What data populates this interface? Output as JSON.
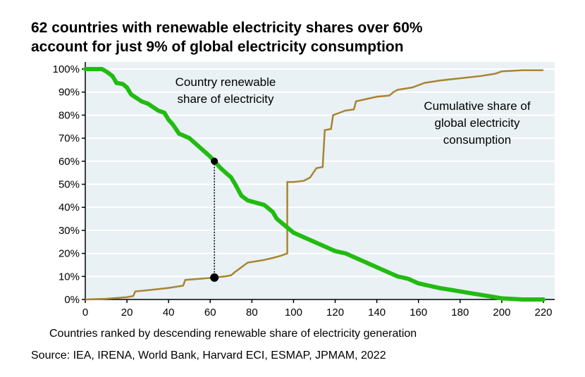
{
  "chart_data": {
    "type": "line",
    "title_line1": "62 countries with renewable electricity shares over 60%",
    "title_line2": "account for just 9% of global electricity consumption",
    "xlabel": "Countries ranked by descending renewable share of electricity generation",
    "source": "Source: IEA, IRENA, World Bank, Harvard ECI, ESMAP, JPMAM, 2022",
    "xlim": [
      0,
      220
    ],
    "ylim": [
      0,
      100
    ],
    "x_ticks": [
      0,
      20,
      40,
      60,
      80,
      100,
      120,
      140,
      160,
      180,
      200,
      220
    ],
    "y_ticks": [
      "0%",
      "10%",
      "20%",
      "30%",
      "40%",
      "50%",
      "60%",
      "70%",
      "80%",
      "90%",
      "100%"
    ],
    "grid": true,
    "colors": {
      "renewable": "#22bb11",
      "cumulative": "#a88432",
      "background": "#e9f1f5"
    },
    "series": [
      {
        "name": "Country renewable share of electricity",
        "label_line1": "Country renewable",
        "label_line2": "share of electricity",
        "x": [
          0,
          8,
          10,
          13,
          15,
          18,
          20,
          22,
          27,
          30,
          35,
          38,
          40,
          42,
          45,
          50,
          55,
          60,
          62,
          65,
          70,
          72,
          75,
          78,
          82,
          86,
          90,
          92,
          96,
          100,
          105,
          110,
          115,
          120,
          125,
          130,
          135,
          140,
          145,
          150,
          155,
          160,
          165,
          170,
          180,
          190,
          200,
          210,
          220
        ],
        "values": [
          100,
          100,
          99,
          97,
          94,
          93.5,
          92,
          89,
          86,
          85,
          82,
          81,
          78,
          76,
          72,
          70,
          66,
          62,
          60,
          57,
          53,
          50,
          45,
          43,
          42,
          41,
          38,
          35,
          32,
          29,
          27,
          25,
          23,
          21,
          20,
          18,
          16,
          14,
          12,
          10,
          9,
          7,
          6,
          5,
          3.5,
          2,
          0.5,
          0,
          0
        ]
      },
      {
        "name": "Cumulative share of global electricity consumption",
        "label_line1": "Cumulative share of",
        "label_line2": "global electricity",
        "label_line3": "consumption",
        "x": [
          0,
          10,
          20,
          23,
          24,
          30,
          40,
          47,
          48,
          55,
          62,
          67,
          70,
          72,
          75,
          78,
          85,
          90,
          94,
          97,
          97,
          100,
          105,
          108,
          111,
          114,
          115,
          118,
          119,
          122,
          125,
          129,
          130,
          135,
          140,
          146,
          148,
          150,
          157,
          163,
          170,
          180,
          190,
          197,
          200,
          210,
          220
        ],
        "values": [
          0,
          0.3,
          1,
          1.5,
          3.5,
          4,
          5,
          6,
          8.5,
          9,
          9.5,
          10,
          10.5,
          12,
          14,
          16,
          17,
          18,
          19,
          20,
          51,
          51,
          51.5,
          53,
          57,
          57.5,
          73.5,
          74,
          80,
          81,
          82,
          82.5,
          86,
          87,
          88,
          88.5,
          90,
          91,
          92,
          94,
          95,
          96,
          97,
          98,
          99,
          99.5,
          99.5
        ]
      }
    ],
    "highlight": {
      "x": 62,
      "renewable_share": 60,
      "cumulative_share": 9.5
    }
  }
}
